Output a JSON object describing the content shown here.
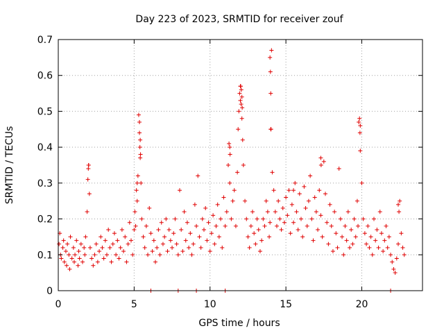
{
  "chart_data": {
    "type": "scatter",
    "title": "Day 223 of 2023, SRMTID for receiver zouf",
    "xlabel": "GPS time / hours",
    "ylabel": "SRMTID / TECUs",
    "xlim": [
      0,
      24
    ],
    "ylim": [
      0,
      0.7
    ],
    "xticks": [
      0,
      5,
      10,
      15,
      20
    ],
    "yticks": [
      0,
      0.1,
      0.2,
      0.3,
      0.4,
      0.5,
      0.6,
      0.7
    ],
    "xtick_labels": [
      "0",
      "5",
      "10",
      "15",
      "20"
    ],
    "ytick_labels": [
      "0",
      "0.1",
      "0.2",
      "0.3",
      "0.4",
      "0.5",
      "0.6",
      "0.7"
    ],
    "grid": true,
    "marker": "+",
    "color": "#e00000",
    "series": [
      {
        "name": "SRMTID",
        "x": [
          0.05,
          0.1,
          0.15,
          0.2,
          0.3,
          0.35,
          0.4,
          0.5,
          0.55,
          0.6,
          0.7,
          0.75,
          0.8,
          0.9,
          1.0,
          1.05,
          1.1,
          1.2,
          1.3,
          1.35,
          1.4,
          1.5,
          1.6,
          1.7,
          1.75,
          1.8,
          1.9,
          1.95,
          2.0,
          2.05,
          2.1,
          2.2,
          2.3,
          2.4,
          2.5,
          2.6,
          2.7,
          2.8,
          2.9,
          3.0,
          3.1,
          3.2,
          3.3,
          3.4,
          3.5,
          3.6,
          3.7,
          3.8,
          3.9,
          4.0,
          4.1,
          4.2,
          4.3,
          4.4,
          4.5,
          4.6,
          4.7,
          4.8,
          4.9,
          5.0,
          5.05,
          5.1,
          5.15,
          5.2,
          5.25,
          5.3,
          5.35,
          5.4,
          5.45,
          5.5,
          5.6,
          5.7,
          5.8,
          5.9,
          6.0,
          6.1,
          6.2,
          6.3,
          6.4,
          6.5,
          6.6,
          6.7,
          6.8,
          6.9,
          7.0,
          7.1,
          7.2,
          7.3,
          7.4,
          7.5,
          7.6,
          7.7,
          7.8,
          7.9,
          8.0,
          8.1,
          8.2,
          8.3,
          8.4,
          8.5,
          8.6,
          8.7,
          8.8,
          8.9,
          9.0,
          9.1,
          9.2,
          9.3,
          9.4,
          9.5,
          9.6,
          9.7,
          9.8,
          9.9,
          10.0,
          10.1,
          10.2,
          10.3,
          10.4,
          10.5,
          10.6,
          10.7,
          10.8,
          10.9,
          11.0,
          11.1,
          11.2,
          11.25,
          11.3,
          11.4,
          11.5,
          11.6,
          11.7,
          11.8,
          11.85,
          11.9,
          11.95,
          12.0,
          12.05,
          12.1,
          12.15,
          12.2,
          12.3,
          12.4,
          12.5,
          12.6,
          12.7,
          12.8,
          12.9,
          13.0,
          13.1,
          13.2,
          13.3,
          13.4,
          13.5,
          13.6,
          13.7,
          13.8,
          13.9,
          13.95,
          14.0,
          14.05,
          14.1,
          14.2,
          14.3,
          14.4,
          14.5,
          14.6,
          14.7,
          14.8,
          14.9,
          15.0,
          15.1,
          15.2,
          15.3,
          15.4,
          15.5,
          15.6,
          15.7,
          15.8,
          15.9,
          16.0,
          16.1,
          16.2,
          16.3,
          16.4,
          16.5,
          16.6,
          16.7,
          16.8,
          16.9,
          17.0,
          17.1,
          17.2,
          17.3,
          17.4,
          17.5,
          17.6,
          17.7,
          17.8,
          17.9,
          18.0,
          18.1,
          18.2,
          18.3,
          18.4,
          18.5,
          18.6,
          18.7,
          18.8,
          18.9,
          19.0,
          19.1,
          19.2,
          19.3,
          19.4,
          19.5,
          19.6,
          19.7,
          19.75,
          19.8,
          19.9,
          20.0,
          20.1,
          20.2,
          20.3,
          20.4,
          20.5,
          20.6,
          20.7,
          20.8,
          20.9,
          21.0,
          21.1,
          21.2,
          21.3,
          21.4,
          21.5,
          21.6,
          21.7,
          21.8,
          21.9,
          22.0,
          22.1,
          22.2,
          22.3,
          22.4,
          22.5,
          22.6,
          22.7,
          22.8,
          5.35,
          5.4,
          5.38,
          5.42,
          12.02,
          12.06,
          12.1,
          12.12,
          12.0,
          13.95,
          13.98,
          14.0,
          14.02,
          19.85,
          19.9,
          19.88,
          11.3,
          11.32,
          17.3,
          17.32,
          22.4,
          22.45,
          5.2,
          15.5,
          2.0,
          1.98
        ],
        "y": [
          0.13,
          0.16,
          0.1,
          0.09,
          0.12,
          0.14,
          0.08,
          0.11,
          0.07,
          0.13,
          0.1,
          0.06,
          0.15,
          0.09,
          0.12,
          0.08,
          0.1,
          0.14,
          0.07,
          0.11,
          0.09,
          0.13,
          0.08,
          0.12,
          0.1,
          0.15,
          0.22,
          0.31,
          0.35,
          0.27,
          0.12,
          0.09,
          0.07,
          0.1,
          0.13,
          0.08,
          0.11,
          0.15,
          0.12,
          0.09,
          0.14,
          0.1,
          0.17,
          0.12,
          0.08,
          0.13,
          0.16,
          0.1,
          0.14,
          0.09,
          0.12,
          0.17,
          0.11,
          0.15,
          0.08,
          0.13,
          0.19,
          0.14,
          0.1,
          0.17,
          0.22,
          0.18,
          0.28,
          0.25,
          0.32,
          0.49,
          0.44,
          0.37,
          0.3,
          0.2,
          0.15,
          0.12,
          0.18,
          0.1,
          0.23,
          0.16,
          0.11,
          0.14,
          0.08,
          0.12,
          0.17,
          0.1,
          0.19,
          0.13,
          0.15,
          0.2,
          0.11,
          0.17,
          0.14,
          0.12,
          0.16,
          0.2,
          0.13,
          0.1,
          0.28,
          0.17,
          0.11,
          0.22,
          0.14,
          0.19,
          0.12,
          0.16,
          0.1,
          0.13,
          0.24,
          0.18,
          0.32,
          0.15,
          0.12,
          0.2,
          0.17,
          0.23,
          0.14,
          0.19,
          0.11,
          0.16,
          0.21,
          0.13,
          0.18,
          0.24,
          0.15,
          0.2,
          0.12,
          0.26,
          0.18,
          0.22,
          0.35,
          0.41,
          0.3,
          0.2,
          0.25,
          0.28,
          0.18,
          0.33,
          0.45,
          0.5,
          0.55,
          0.57,
          0.52,
          0.48,
          0.42,
          0.35,
          0.25,
          0.2,
          0.15,
          0.12,
          0.18,
          0.22,
          0.16,
          0.13,
          0.2,
          0.17,
          0.11,
          0.14,
          0.2,
          0.18,
          0.25,
          0.22,
          0.15,
          0.19,
          0.45,
          0.67,
          0.33,
          0.28,
          0.22,
          0.18,
          0.25,
          0.2,
          0.17,
          0.23,
          0.19,
          0.26,
          0.21,
          0.28,
          0.16,
          0.24,
          0.19,
          0.3,
          0.22,
          0.17,
          0.27,
          0.2,
          0.15,
          0.29,
          0.23,
          0.18,
          0.25,
          0.32,
          0.2,
          0.14,
          0.26,
          0.22,
          0.17,
          0.28,
          0.21,
          0.15,
          0.36,
          0.27,
          0.19,
          0.13,
          0.24,
          0.18,
          0.11,
          0.22,
          0.16,
          0.12,
          0.34,
          0.2,
          0.15,
          0.1,
          0.18,
          0.14,
          0.22,
          0.12,
          0.17,
          0.13,
          0.2,
          0.15,
          0.25,
          0.18,
          0.47,
          0.39,
          0.3,
          0.2,
          0.16,
          0.13,
          0.18,
          0.12,
          0.15,
          0.1,
          0.2,
          0.14,
          0.17,
          0.12,
          0.22,
          0.16,
          0.11,
          0.14,
          0.18,
          0.12,
          0.15,
          0.1,
          0.08,
          0.06,
          0.05,
          0.09,
          0.13,
          0.25,
          0.16,
          0.12,
          0.1,
          0.47,
          0.42,
          0.4,
          0.38,
          0.57,
          0.56,
          0.54,
          0.51,
          0.53,
          0.65,
          0.61,
          0.55,
          0.45,
          0.48,
          0.46,
          0.44,
          0.4,
          0.38,
          0.37,
          0.35,
          0.24,
          0.22,
          0.3,
          0.28,
          0.35,
          0.34
        ]
      }
    ],
    "zero_markers_x": [
      6.1,
      7.9,
      9.1,
      11.0,
      21.9
    ]
  }
}
